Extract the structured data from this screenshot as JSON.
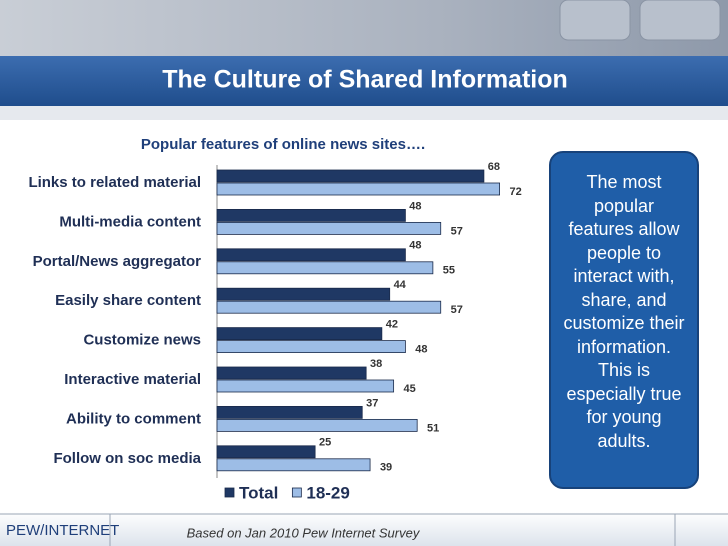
{
  "title": "The Culture of Shared Information",
  "callout": "The most popular features allow people to interact with, share, and customize their information. This is especially true for young adults.",
  "logo": "PEW/INTERNET",
  "footnote": "Based on Jan 2010 Pew Internet Survey",
  "chart_data": {
    "type": "bar",
    "orientation": "horizontal",
    "title": "Popular features of online news sites….",
    "categories": [
      "Links to related material",
      "Multi-media content",
      "Portal/News aggregator",
      "Easily share content",
      "Customize news",
      "Interactive material",
      "Ability to comment",
      "Follow on soc media"
    ],
    "series": [
      {
        "name": "Total",
        "color": "#1f3864",
        "values": [
          68,
          48,
          48,
          44,
          42,
          38,
          37,
          25
        ]
      },
      {
        "name": "18-29",
        "color": "#9dbde6",
        "values": [
          72,
          57,
          55,
          57,
          48,
          45,
          51,
          39
        ]
      }
    ],
    "xlim": [
      0,
      80
    ],
    "legend": "bottom"
  }
}
